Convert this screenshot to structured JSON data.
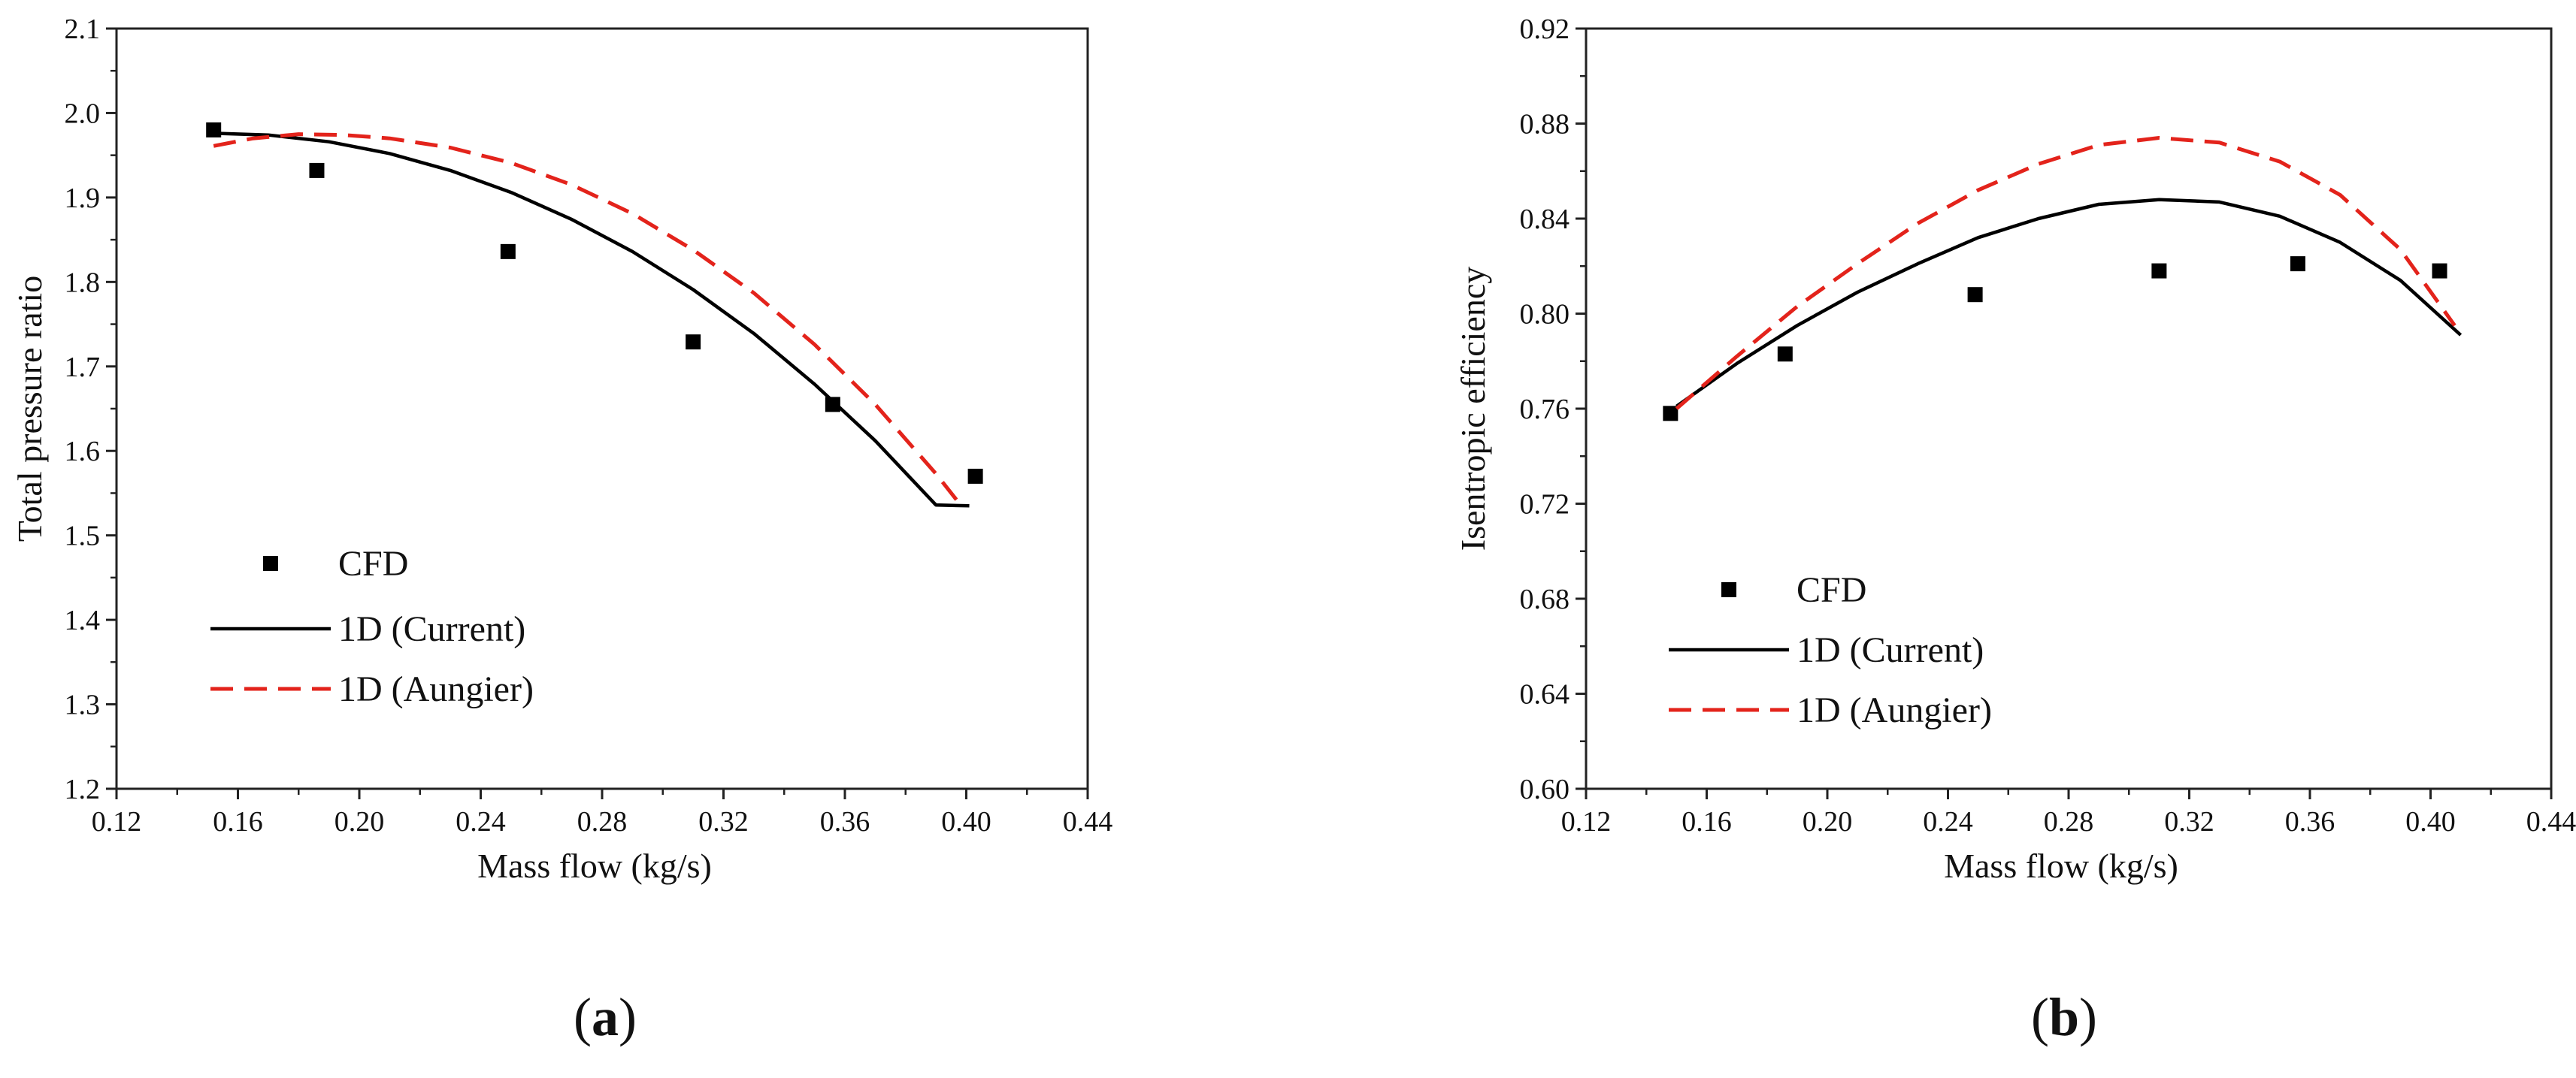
{
  "chart_data": [
    {
      "type": "line",
      "panel_label": "(a)",
      "panel_letter": "a",
      "title": "",
      "xlabel": "Mass flow (kg/s)",
      "ylabel": "Total pressure ratio",
      "xlim": [
        0.12,
        0.44
      ],
      "ylim": [
        1.2,
        2.1
      ],
      "x_ticks": [
        "0.12",
        "0.16",
        "0.20",
        "0.24",
        "0.28",
        "0.32",
        "0.36",
        "0.40",
        "0.44"
      ],
      "y_ticks": [
        "1.2",
        "1.3",
        "1.4",
        "1.5",
        "1.6",
        "1.7",
        "1.8",
        "1.9",
        "2.0",
        "2.1"
      ],
      "legend_position": "lower-left",
      "series": [
        {
          "name": "CFD",
          "style": "scatter",
          "marker": "square",
          "color": "#000000",
          "x": [
            0.152,
            0.186,
            0.249,
            0.31,
            0.356,
            0.403
          ],
          "y": [
            1.98,
            1.932,
            1.836,
            1.729,
            1.655,
            1.57
          ]
        },
        {
          "name": "1D (Current)",
          "style": "line",
          "dash": "solid",
          "color": "#000000",
          "x": [
            0.152,
            0.17,
            0.19,
            0.21,
            0.23,
            0.25,
            0.27,
            0.29,
            0.31,
            0.33,
            0.35,
            0.37,
            0.39,
            0.401
          ],
          "y": [
            1.976,
            1.974,
            1.966,
            1.952,
            1.932,
            1.906,
            1.874,
            1.836,
            1.791,
            1.739,
            1.679,
            1.612,
            1.536,
            1.535
          ]
        },
        {
          "name": "1D (Aungier)",
          "style": "line",
          "dash": "dashed",
          "color": "#e3231b",
          "x": [
            0.152,
            0.165,
            0.18,
            0.195,
            0.21,
            0.23,
            0.25,
            0.27,
            0.29,
            0.31,
            0.33,
            0.35,
            0.37,
            0.39,
            0.399
          ],
          "y": [
            1.961,
            1.97,
            1.975,
            1.974,
            1.97,
            1.959,
            1.941,
            1.915,
            1.881,
            1.838,
            1.787,
            1.726,
            1.655,
            1.573,
            1.532
          ]
        }
      ]
    },
    {
      "type": "line",
      "panel_label": "(b)",
      "panel_letter": "b",
      "title": "",
      "xlabel": "Mass flow (kg/s)",
      "ylabel": "Isentropic efficiency",
      "xlim": [
        0.12,
        0.44
      ],
      "ylim": [
        0.6,
        0.92
      ],
      "x_ticks": [
        "0.12",
        "0.16",
        "0.20",
        "0.24",
        "0.28",
        "0.32",
        "0.36",
        "0.40",
        "0.44"
      ],
      "y_ticks": [
        "0.60",
        "0.64",
        "0.68",
        "0.72",
        "0.76",
        "0.80",
        "0.84",
        "0.88",
        "0.92"
      ],
      "legend_position": "lower-left",
      "series": [
        {
          "name": "CFD",
          "style": "scatter",
          "marker": "square",
          "color": "#000000",
          "x": [
            0.148,
            0.186,
            0.249,
            0.31,
            0.356,
            0.403
          ],
          "y": [
            0.758,
            0.783,
            0.808,
            0.818,
            0.821,
            0.818
          ]
        },
        {
          "name": "1D (Current)",
          "style": "line",
          "dash": "solid",
          "color": "#000000",
          "x": [
            0.15,
            0.17,
            0.19,
            0.21,
            0.23,
            0.25,
            0.27,
            0.29,
            0.31,
            0.33,
            0.35,
            0.37,
            0.39,
            0.41
          ],
          "y": [
            0.761,
            0.779,
            0.795,
            0.809,
            0.821,
            0.832,
            0.84,
            0.846,
            0.848,
            0.847,
            0.841,
            0.83,
            0.814,
            0.791
          ]
        },
        {
          "name": "1D (Aungier)",
          "style": "line",
          "dash": "dashed",
          "color": "#e3231b",
          "x": [
            0.15,
            0.17,
            0.19,
            0.21,
            0.23,
            0.25,
            0.27,
            0.29,
            0.31,
            0.33,
            0.35,
            0.37,
            0.39,
            0.408
          ],
          "y": [
            0.76,
            0.782,
            0.803,
            0.821,
            0.838,
            0.852,
            0.863,
            0.871,
            0.874,
            0.872,
            0.864,
            0.85,
            0.827,
            0.795
          ]
        }
      ]
    }
  ]
}
